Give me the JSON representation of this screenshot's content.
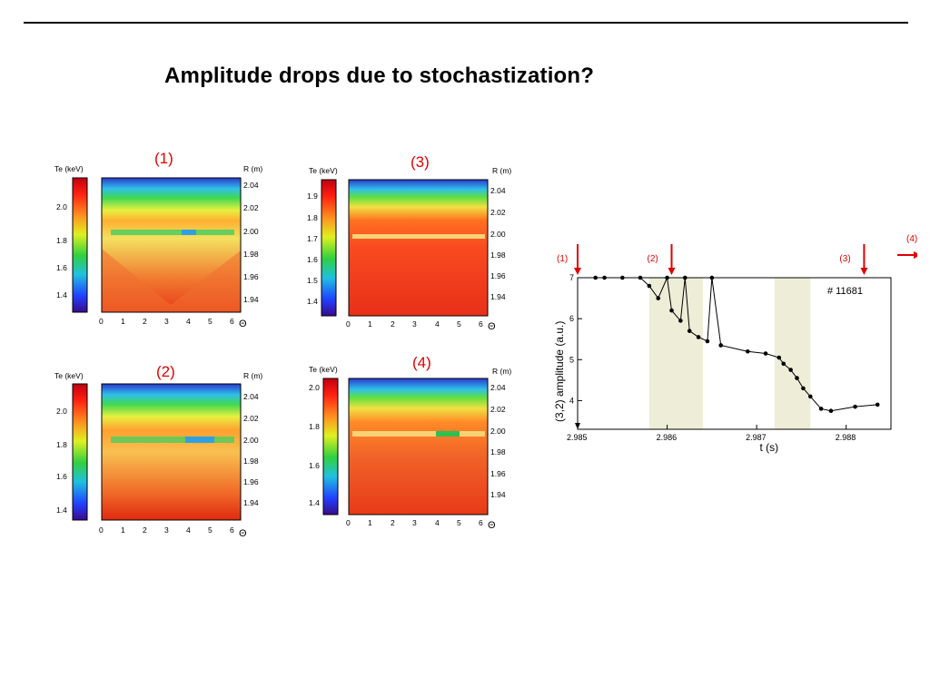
{
  "title": "Amplitude drops due to stochastization?",
  "panels": [
    {
      "id": "1",
      "label": "(1)",
      "te_axis_label": "Te (keV)",
      "r_axis_label": "R (m)",
      "colorbar_ticks": [
        "2.0",
        "1.8",
        "1.6",
        "1.4"
      ],
      "r_ticks": [
        "2.04",
        "2.02",
        "2.00",
        "1.98",
        "1.96",
        "1.94"
      ],
      "theta_ticks": [
        "0",
        "1",
        "2",
        "3",
        "4",
        "5",
        "6"
      ],
      "theta_symbol": "Θ"
    },
    {
      "id": "3",
      "label": "(3)",
      "te_axis_label": "Te (keV)",
      "r_axis_label": "R (m)",
      "colorbar_ticks": [
        "1.9",
        "1.8",
        "1.7",
        "1.6",
        "1.5",
        "1.4"
      ],
      "r_ticks": [
        "2.04",
        "2.02",
        "2.00",
        "1.98",
        "1.96",
        "1.94"
      ],
      "theta_ticks": [
        "0",
        "1",
        "2",
        "3",
        "4",
        "5",
        "6"
      ],
      "theta_symbol": "Θ"
    },
    {
      "id": "2",
      "label": "(2)",
      "te_axis_label": "Te (keV)",
      "r_axis_label": "R (m)",
      "colorbar_ticks": [
        "2.0",
        "1.8",
        "1.6",
        "1.4"
      ],
      "r_ticks": [
        "2.04",
        "2.02",
        "2.00",
        "1.98",
        "1.96",
        "1.94"
      ],
      "theta_ticks": [
        "0",
        "1",
        "2",
        "3",
        "4",
        "5",
        "6"
      ],
      "theta_symbol": "Θ"
    },
    {
      "id": "4",
      "label": "(4)",
      "te_axis_label": "Te (keV)",
      "r_axis_label": "R (m)",
      "colorbar_ticks": [
        "2.0",
        "1.8",
        "1.6",
        "1.4"
      ],
      "r_ticks": [
        "2.04",
        "2.02",
        "2.00",
        "1.98",
        "1.96",
        "1.94"
      ],
      "theta_ticks": [
        "0",
        "1",
        "2",
        "3",
        "4",
        "5",
        "6"
      ],
      "theta_symbol": "Θ"
    }
  ],
  "chart_data": {
    "type": "line",
    "title": "",
    "annotation": "# 11681",
    "xlabel": "t (s)",
    "ylabel": "(3,2) amplitude (a.u.)",
    "xlim": [
      2.985,
      2.9885
    ],
    "ylim": [
      3.3,
      7.0
    ],
    "xticks": [
      "2.985",
      "2.986",
      "2.987",
      "2.988"
    ],
    "yticks": [
      "4",
      "5",
      "6",
      "7"
    ],
    "grid": false,
    "x": [
      2.9852,
      2.9853,
      2.9855,
      2.9857,
      2.986,
      2.9862,
      2.9865,
      2.9858,
      2.9859,
      2.98605,
      2.98615,
      2.98625,
      2.98635,
      2.98645,
      2.9866,
      2.9869,
      2.9871,
      2.98725,
      2.9873,
      2.98738,
      2.98745,
      2.98752,
      2.9876,
      2.98772,
      2.98783,
      2.9881,
      2.98835
    ],
    "y": [
      7.0,
      7.0,
      7.0,
      7.0,
      7.0,
      7.0,
      7.0,
      6.8,
      6.5,
      6.2,
      5.95,
      5.7,
      5.55,
      5.45,
      5.35,
      5.2,
      5.15,
      5.05,
      4.9,
      4.75,
      4.55,
      4.3,
      4.1,
      3.8,
      3.75,
      3.85,
      3.9
    ],
    "shaded_regions": [
      [
        2.9858,
        2.9864
      ],
      [
        2.9872,
        2.9876
      ]
    ],
    "shade_color": "#eeeed8",
    "markers": [
      {
        "label": "(1)",
        "x": 2.985
      },
      {
        "label": "(2)",
        "x": 2.98605
      },
      {
        "label": "(3)",
        "x": 2.9882
      },
      {
        "label": "(4)",
        "x": 2.989
      }
    ],
    "marker_color": "#e00000"
  }
}
